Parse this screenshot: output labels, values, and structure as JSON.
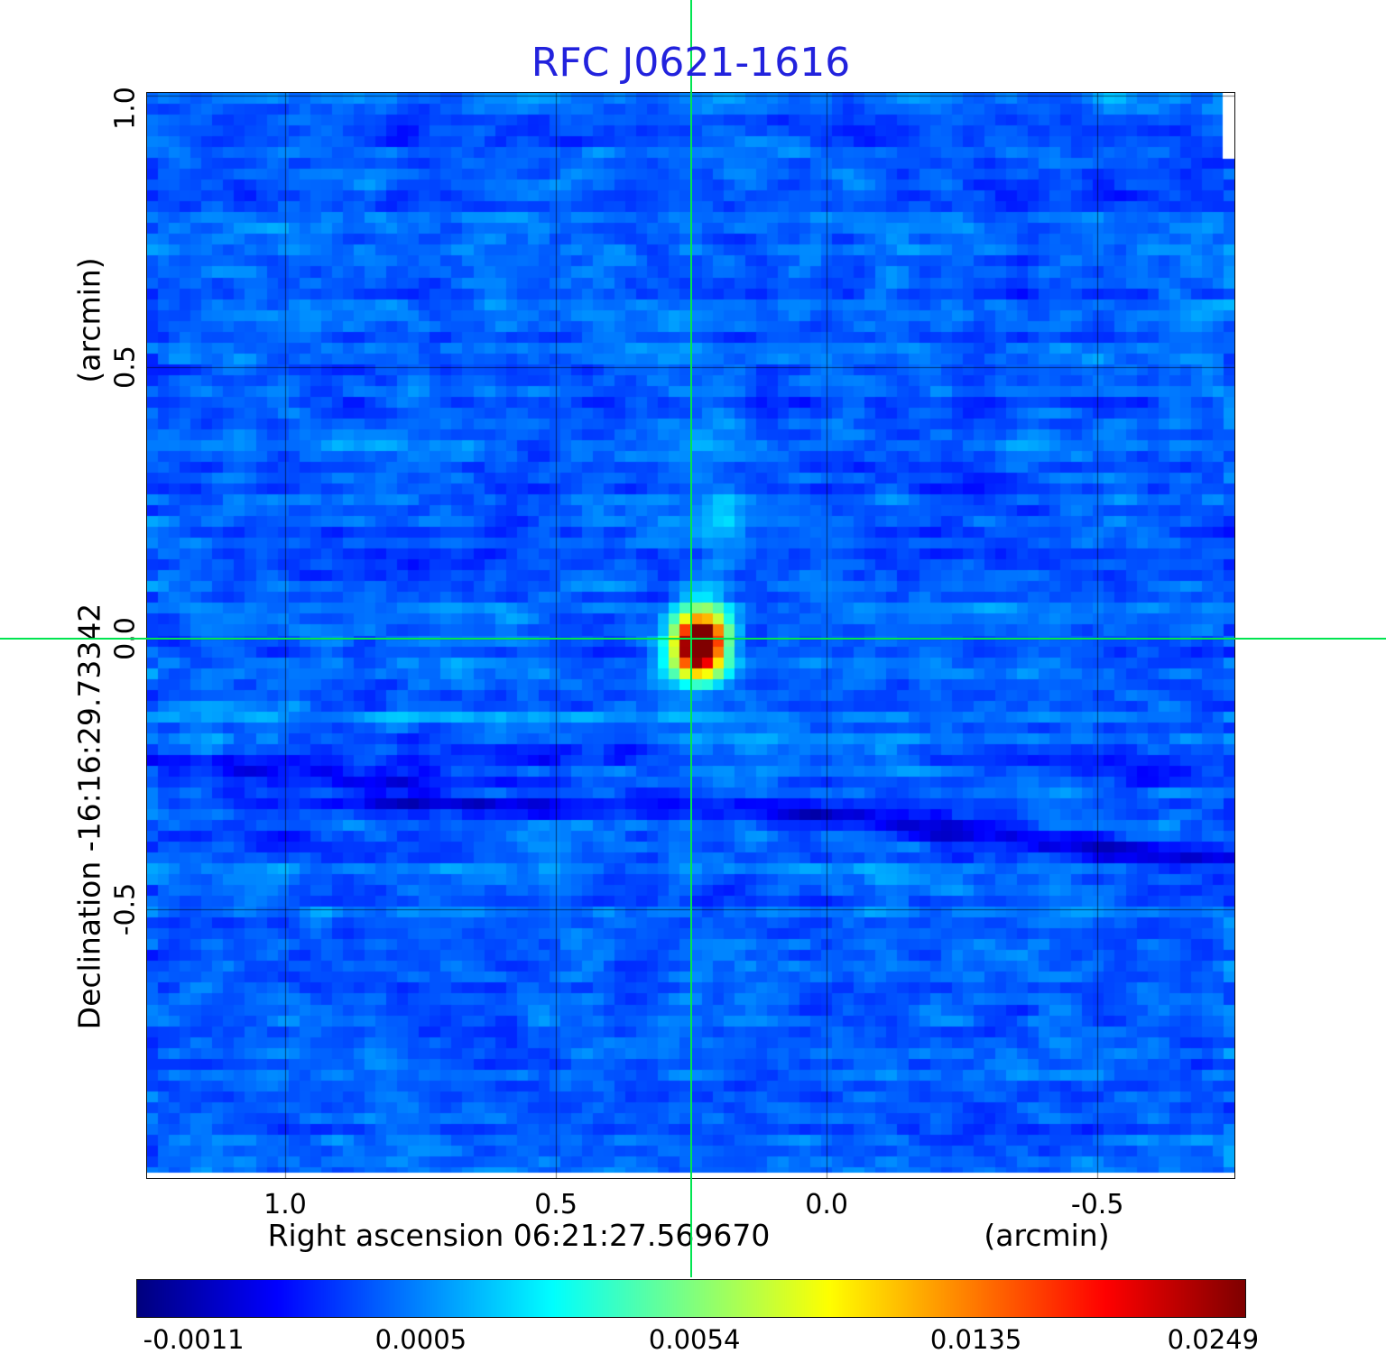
{
  "title": "RFC J0621-1616",
  "colors": {
    "title": "#2222dd",
    "crosshair": "#00e550",
    "text": "#000000",
    "grid": "rgba(0,0,0,0.55)"
  },
  "x_axis": {
    "label": "Right ascension  06:21:27.569670",
    "unit": "(arcmin)",
    "ticks": [
      "1.0",
      "0.5",
      "0.0",
      "-0.5"
    ],
    "tick_values": [
      1.0,
      0.5,
      0.0,
      -0.5
    ]
  },
  "y_axis": {
    "label": "Declination  -16:16:29.73342",
    "unit": "(arcmin)",
    "ticks": [
      "1.0",
      "0.5",
      "0.0",
      "-0.5"
    ],
    "tick_values": [
      1.0,
      0.5,
      0.0,
      -0.5
    ]
  },
  "colorbar": {
    "colormap": "jet",
    "labels": [
      "-0.0011",
      "0.0005",
      "0.0054",
      "0.0135",
      "0.0249"
    ],
    "positions": [
      0.051,
      0.256,
      0.503,
      0.757,
      0.971
    ]
  },
  "chart_data": {
    "type": "heatmap",
    "title": "RFC J0621-1616",
    "xlabel": "Right ascension 06:21:27.569670 (arcmin)",
    "ylabel": "Declination -16:16:29.73342 (arcmin)",
    "x_range_arcmin": [
      1.255,
      -0.753
    ],
    "y_range_arcmin": [
      1.005,
      -0.995
    ],
    "x_ticks_arcmin": [
      1.0,
      0.5,
      0.0,
      -0.5
    ],
    "y_ticks_arcmin": [
      1.0,
      0.5,
      0.0,
      -0.5
    ],
    "grid": true,
    "colormap": "jet",
    "intensity_scale_ticks": [
      -0.0011,
      0.0005,
      0.0054,
      0.0135,
      0.0249
    ],
    "background_noise_level": 0.0005,
    "crosshair_arcmin": {
      "x": 0.25,
      "y": 0.0
    },
    "features": [
      {
        "name": "compact-source",
        "x_arcmin": 0.25,
        "y_arcmin": 0.0,
        "peak_intensity": 0.0249
      },
      {
        "name": "faint-northern-extension",
        "x_arcmin": 0.2,
        "y_arcmin": 0.25,
        "peak_intensity": 0.004
      },
      {
        "name": "negative-sidelobe-streaks",
        "x_arcmin": 0.6,
        "y_arcmin": -0.35,
        "peak_intensity": -0.0011
      }
    ]
  }
}
